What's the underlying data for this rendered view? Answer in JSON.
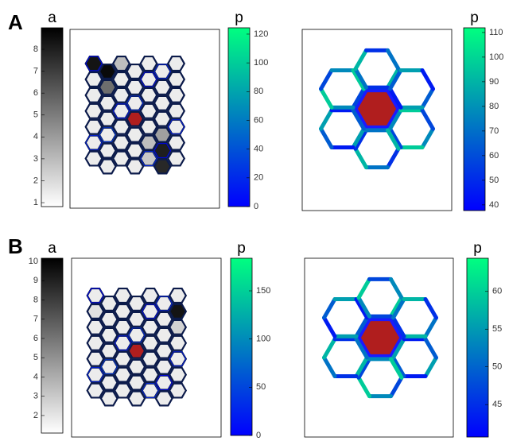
{
  "panels": [
    {
      "label": "A",
      "colorbars": [
        {
          "title": "a",
          "colormap": "gray",
          "lim": [
            0.82,
            8.98
          ],
          "ticks": [
            1,
            2,
            3,
            4,
            5,
            6,
            7,
            8
          ]
        },
        {
          "title": "p",
          "colormap": "winter",
          "lim": [
            0,
            124.4
          ],
          "ticks": [
            0,
            20,
            40,
            60,
            80,
            100,
            120
          ]
        },
        {
          "title": "p",
          "colormap": "winter",
          "lim": [
            37.7,
            111.9
          ],
          "ticks": [
            40,
            50,
            60,
            70,
            80,
            90,
            100,
            110
          ]
        }
      ]
    },
    {
      "label": "B",
      "colorbars": [
        {
          "title": "a",
          "colormap": "gray",
          "lim": [
            1.09,
            10.16
          ],
          "ticks": [
            2,
            3,
            4,
            5,
            6,
            7,
            8,
            9,
            10
          ]
        },
        {
          "title": "p",
          "colormap": "winter",
          "lim": [
            0,
            183.8
          ],
          "ticks": [
            0,
            50,
            100,
            150
          ]
        },
        {
          "title": "p",
          "colormap": "winter",
          "lim": [
            40.7,
            64.4
          ],
          "ticks": [
            45,
            50,
            55,
            60
          ]
        }
      ]
    }
  ]
}
